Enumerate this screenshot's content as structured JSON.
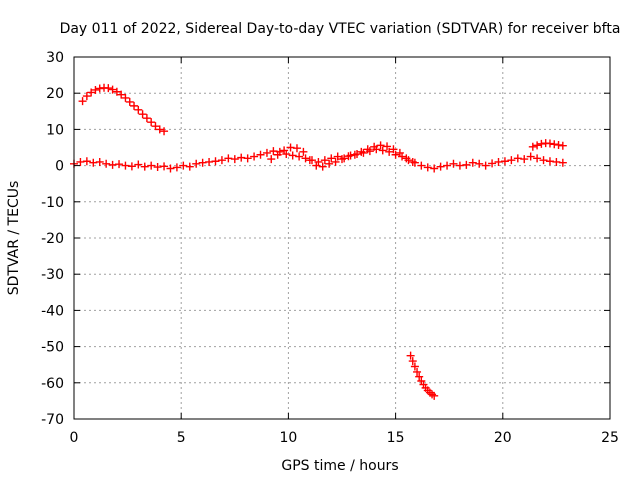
{
  "chart_data": {
    "type": "scatter",
    "title": "Day 011 of 2022, Sidereal Day-to-day VTEC variation (SDTVAR) for receiver bfta",
    "xlabel": "GPS time / hours",
    "ylabel": "SDTVAR / TECUs",
    "xlim": [
      0,
      25
    ],
    "ylim": [
      -70,
      30
    ],
    "xticks": [
      0,
      5,
      10,
      15,
      20,
      25
    ],
    "yticks": [
      -70,
      -60,
      -50,
      -40,
      -30,
      -20,
      -10,
      0,
      10,
      20,
      30
    ],
    "grid": true,
    "marker": "plus",
    "color": "#ff0000",
    "series": [
      {
        "name": "arc-early-high",
        "x": [
          0.4,
          0.6,
          0.8,
          1.0,
          1.2,
          1.4,
          1.6,
          1.8,
          2.0,
          2.2,
          2.4,
          2.6,
          2.8,
          3.0,
          3.2,
          3.4,
          3.6,
          3.8,
          4.0,
          4.2
        ],
        "y": [
          17.8,
          19.2,
          20.2,
          20.9,
          21.3,
          21.5,
          21.4,
          21.0,
          20.4,
          19.6,
          18.7,
          17.6,
          16.5,
          15.4,
          14.2,
          13.1,
          12.0,
          10.9,
          10.0,
          9.5
        ]
      },
      {
        "name": "near-zero-band",
        "x": [
          0.0,
          0.3,
          0.6,
          0.9,
          1.2,
          1.5,
          1.8,
          2.1,
          2.4,
          2.7,
          3.0,
          3.3,
          3.6,
          3.9,
          4.2,
          4.5,
          4.8,
          5.1,
          5.4,
          5.7,
          6.0,
          6.3,
          6.6,
          6.9,
          7.2,
          7.5,
          7.8,
          8.1,
          8.4,
          8.7,
          9.0,
          9.3,
          9.6,
          9.9,
          10.2,
          10.5,
          10.8,
          11.1,
          11.4,
          11.7,
          12.0,
          12.3,
          12.6,
          12.9,
          13.2,
          13.5,
          13.8,
          14.1,
          14.4,
          14.7,
          15.0,
          15.3,
          15.6,
          15.9,
          16.2,
          16.5,
          16.8,
          17.1,
          17.4,
          17.7,
          18.0,
          18.3,
          18.6,
          18.9,
          19.2,
          19.5,
          19.8,
          20.1,
          20.4,
          20.7,
          21.0,
          21.3,
          21.6,
          21.9,
          22.2,
          22.5,
          22.8
        ],
        "y": [
          0.5,
          1.0,
          1.2,
          0.8,
          1.0,
          0.5,
          0.2,
          0.4,
          0.0,
          -0.2,
          0.3,
          -0.3,
          0.0,
          -0.4,
          -0.2,
          -0.8,
          -0.5,
          0.0,
          -0.3,
          0.5,
          0.8,
          1.0,
          1.2,
          1.5,
          2.0,
          1.8,
          2.2,
          2.0,
          2.5,
          3.0,
          3.5,
          4.0,
          3.8,
          3.2,
          2.8,
          2.5,
          2.0,
          1.5,
          1.0,
          1.5,
          2.0,
          2.5,
          2.0,
          2.8,
          3.2,
          3.5,
          4.0,
          4.5,
          4.2,
          3.8,
          3.0,
          2.5,
          1.5,
          0.8,
          0.0,
          -0.5,
          -0.8,
          -0.3,
          0.0,
          0.5,
          0.0,
          0.2,
          0.8,
          0.5,
          0.0,
          0.6,
          1.0,
          1.2,
          1.5,
          2.0,
          1.8,
          2.5,
          2.0,
          1.5,
          1.2,
          1.0,
          0.8
        ]
      },
      {
        "name": "secondary-band",
        "x": [
          9.2,
          9.5,
          9.8,
          10.1,
          10.4,
          10.7,
          11.0,
          11.3,
          11.6,
          11.9,
          12.2,
          12.5,
          12.8,
          13.1,
          13.4,
          13.7,
          14.0,
          14.3,
          14.6,
          14.9,
          15.2,
          15.5,
          15.8
        ],
        "y": [
          1.8,
          3.0,
          4.2,
          5.0,
          4.8,
          3.8,
          1.5,
          0.0,
          -0.3,
          0.5,
          1.0,
          1.8,
          2.6,
          3.0,
          3.8,
          4.5,
          5.2,
          5.6,
          5.3,
          4.5,
          3.5,
          2.0,
          1.0
        ]
      },
      {
        "name": "arc-late-high",
        "x": [
          21.4,
          21.6,
          21.8,
          22.0,
          22.2,
          22.4,
          22.6,
          22.8
        ],
        "y": [
          5.2,
          5.6,
          6.0,
          6.2,
          6.1,
          5.9,
          5.7,
          5.5
        ]
      },
      {
        "name": "arc-low",
        "x": [
          15.7,
          15.8,
          15.9,
          16.0,
          16.1,
          16.2,
          16.3,
          16.4,
          16.5,
          16.6,
          16.7,
          16.8
        ],
        "y": [
          -52.5,
          -54.0,
          -55.5,
          -57.0,
          -58.3,
          -59.5,
          -60.5,
          -61.4,
          -62.1,
          -62.7,
          -63.2,
          -63.6
        ]
      }
    ]
  }
}
